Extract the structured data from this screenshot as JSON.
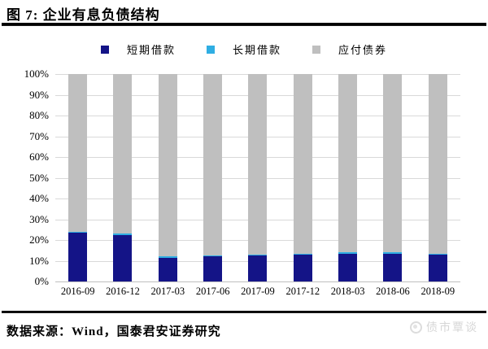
{
  "title": "图 7: 企业有息负债结构",
  "chart_data": {
    "type": "bar",
    "stacked": true,
    "title": "企业有息负债结构",
    "categories": [
      "2016-09",
      "2016-12",
      "2017-03",
      "2017-06",
      "2017-09",
      "2017-12",
      "2018-03",
      "2018-06",
      "2018-09"
    ],
    "series": [
      {
        "name": "短期借款",
        "color": "#141487",
        "values": [
          23.5,
          22.5,
          11.5,
          12.0,
          12.5,
          13.0,
          13.5,
          13.5,
          13.0
        ]
      },
      {
        "name": "长期借款",
        "color": "#2FAEE3",
        "values": [
          0.5,
          0.5,
          0.5,
          0.5,
          0.5,
          0.5,
          0.5,
          0.5,
          0.5
        ]
      },
      {
        "name": "应付债券",
        "color": "#BFBFBF",
        "values": [
          76.0,
          77.0,
          88.0,
          87.5,
          87.0,
          86.5,
          86.0,
          86.0,
          86.5
        ]
      }
    ],
    "ylim": [
      0,
      100
    ],
    "ytick_step": 10,
    "yticks": [
      "0%",
      "10%",
      "20%",
      "30%",
      "40%",
      "50%",
      "60%",
      "70%",
      "80%",
      "90%",
      "100%"
    ],
    "xlabel": "",
    "ylabel": "",
    "grid": true,
    "gridline_color": "#D9D9D9",
    "legend_position": "top"
  },
  "footer": {
    "source": "数据来源：Wind，国泰君安证券研究",
    "watermark": "债市覃谈"
  }
}
